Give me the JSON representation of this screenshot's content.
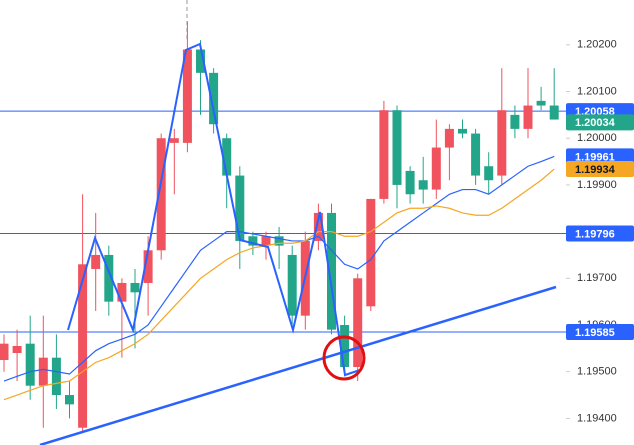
{
  "chart_data": {
    "type": "candlestick",
    "ylim": [
      1.19343,
      1.20296
    ],
    "yticks": [
      {
        "value": 1.202,
        "label": "1.20200"
      },
      {
        "value": 1.201,
        "label": "1.20100"
      },
      {
        "value": 1.2,
        "label": "1.20000"
      },
      {
        "value": 1.199,
        "label": "1.19900"
      },
      {
        "value": 1.198,
        "label": "1.19800"
      },
      {
        "value": 1.197,
        "label": "1.19700"
      },
      {
        "value": 1.196,
        "label": "1.19600"
      },
      {
        "value": 1.195,
        "label": "1.19500"
      },
      {
        "value": 1.194,
        "label": "1.19400"
      }
    ],
    "up_color": "#f0525e",
    "down_color": "#23a58a",
    "open": [
      1.19525,
      1.1954,
      1.1956,
      1.1947,
      1.1953,
      1.1945,
      1.1938,
      1.1972,
      1.1975,
      1.1965,
      1.1969,
      1.1969,
      1.1976,
      1.1999,
      1.1999,
      1.2019,
      1.2014,
      1.2,
      1.1992,
      1.1979,
      1.1977,
      1.1979,
      1.1975,
      1.1962,
      1.1978,
      1.1984,
      1.196,
      1.1951,
      1.1964,
      1.1987,
      1.2006,
      1.1993,
      1.1991,
      1.1989,
      1.1998,
      1.2002,
      1.2001,
      1.1994,
      1.1992,
      1.2005,
      1.2002,
      1.2008,
      1.2007
    ],
    "high": [
      1.1958,
      1.1959,
      1.1962,
      1.1962,
      1.1958,
      1.1948,
      1.1988,
      1.1984,
      1.1977,
      1.197,
      1.1972,
      1.1979,
      1.2001,
      1.2002,
      1.2025,
      1.2021,
      1.2015,
      1.2001,
      1.1994,
      1.198,
      1.198,
      1.1981,
      1.1977,
      1.198,
      1.1986,
      1.1986,
      1.1962,
      1.1971,
      1.1987,
      1.2008,
      1.2007,
      1.1994,
      1.1996,
      1.2004,
      1.2003,
      1.2004,
      1.2002,
      1.1997,
      1.2015,
      1.2007,
      1.2015,
      1.2011,
      1.2015
    ],
    "low": [
      1.195,
      1.1948,
      1.1944,
      1.1938,
      1.1942,
      1.194,
      1.1937,
      1.1963,
      1.1962,
      1.1953,
      1.1955,
      1.1962,
      1.1974,
      1.1988,
      1.1997,
      1.2005,
      1.2001,
      1.1985,
      1.1972,
      1.1975,
      1.1974,
      1.1972,
      1.196,
      1.1959,
      1.1976,
      1.1958,
      1.1949,
      1.1948,
      1.1963,
      1.1986,
      1.1985,
      1.1986,
      1.1986,
      1.1987,
      1.1991,
      1.2,
      1.199,
      1.1988,
      1.199,
      1.2,
      1.2,
      1.2006,
      1.2004
    ],
    "close": [
      1.1956,
      1.19555,
      1.1947,
      1.1953,
      1.1945,
      1.1943,
      1.1973,
      1.1975,
      1.1965,
      1.1969,
      1.1967,
      1.1976,
      1.2,
      1.2,
      1.2019,
      1.2014,
      1.2003,
      1.1992,
      1.1978,
      1.1977,
      1.1979,
      1.1977,
      1.1962,
      1.1978,
      1.1984,
      1.1959,
      1.1951,
      1.197,
      1.1987,
      1.2006,
      1.199,
      1.1988,
      1.1989,
      1.1998,
      1.2002,
      1.2001,
      1.1992,
      1.1991,
      1.2006,
      1.2002,
      1.2007,
      1.2007,
      1.2004
    ],
    "moving_averages": [
      {
        "color": "#2962ff",
        "values": [
          1.1948,
          1.1949,
          1.195,
          1.19505,
          1.195,
          1.19495,
          1.1952,
          1.19545,
          1.1956,
          1.1957,
          1.1958,
          1.196,
          1.1964,
          1.1968,
          1.1972,
          1.1976,
          1.1978,
          1.198,
          1.198,
          1.19795,
          1.1979,
          1.19785,
          1.1978,
          1.1978,
          1.1979,
          1.1976,
          1.1973,
          1.1972,
          1.1974,
          1.1978,
          1.198,
          1.1982,
          1.1984,
          1.1986,
          1.1988,
          1.1989,
          1.1989,
          1.1988,
          1.199,
          1.1992,
          1.1994,
          1.1995,
          1.19961
        ]
      },
      {
        "color": "#f5a623",
        "values": [
          1.1944,
          1.1945,
          1.1946,
          1.1947,
          1.19475,
          1.1948,
          1.195,
          1.1952,
          1.1953,
          1.19545,
          1.1956,
          1.1958,
          1.1961,
          1.1964,
          1.1967,
          1.197,
          1.1972,
          1.1974,
          1.19755,
          1.19765,
          1.1977,
          1.19775,
          1.19775,
          1.1978,
          1.198,
          1.198,
          1.1979,
          1.1979,
          1.198,
          1.1982,
          1.1984,
          1.1985,
          1.1985,
          1.19855,
          1.1985,
          1.1984,
          1.19835,
          1.19835,
          1.1985,
          1.1987,
          1.1989,
          1.1991,
          1.19934
        ]
      }
    ],
    "price_tags": [
      {
        "value": 1.20058,
        "color": "#2962ff",
        "text_color": "#ffffff",
        "line": true
      },
      {
        "value": 1.20034,
        "color": "#23a58a",
        "text_color": "#ffffff",
        "line": false
      },
      {
        "value": 1.19961,
        "color": "#2962ff",
        "text_color": "#ffffff",
        "line": false
      },
      {
        "value": 1.19934,
        "color": "#f5a623",
        "text_color": "#131722",
        "line": false
      },
      {
        "value": 1.19796,
        "color": "#2962ff",
        "text_color": "#ffffff",
        "line": true
      },
      {
        "value": 1.19585,
        "color": "#2962ff",
        "text_color": "#ffffff",
        "line": true
      }
    ]
  }
}
